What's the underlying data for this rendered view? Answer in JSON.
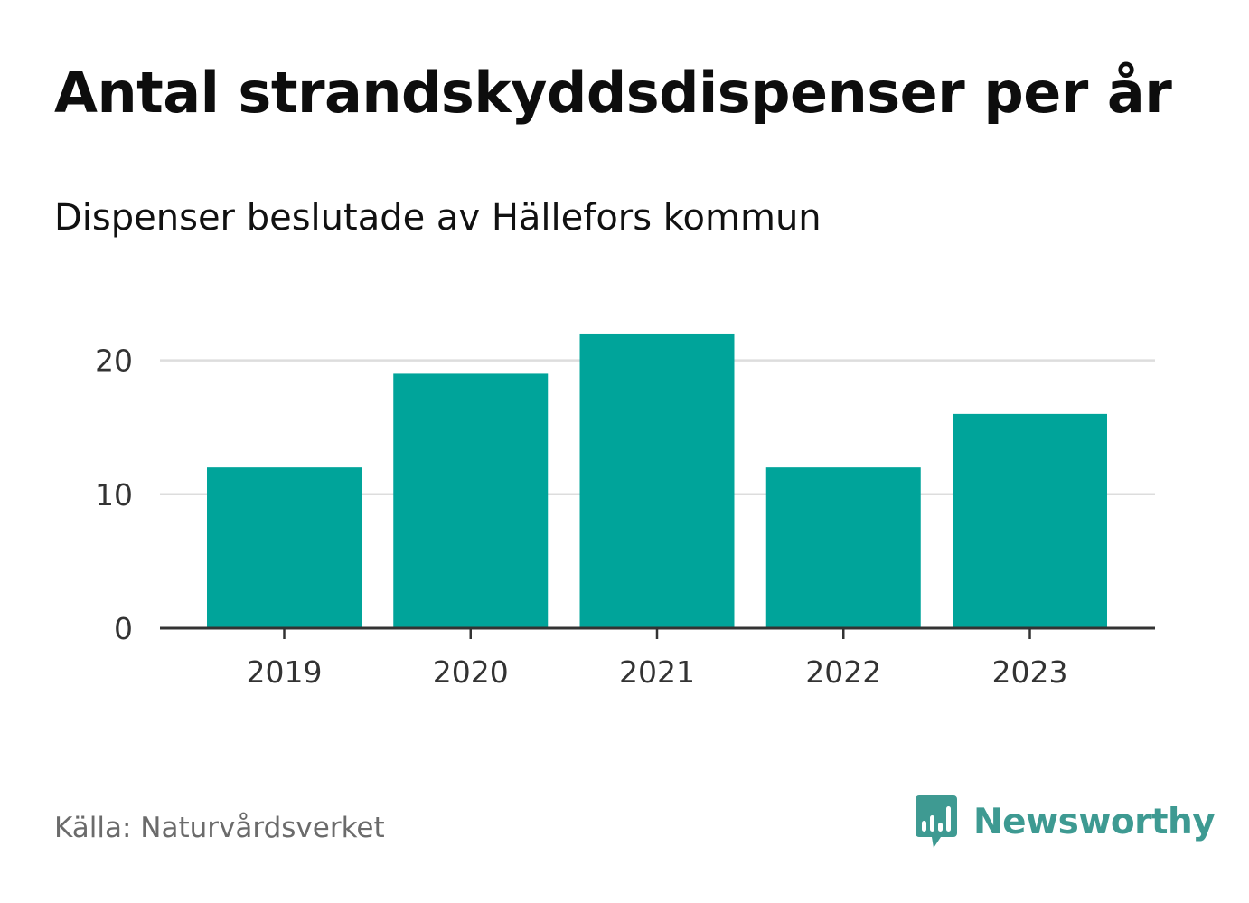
{
  "header": {
    "title": "Antal strandskyddsdispenser per år",
    "subtitle": "Dispenser beslutade av Hällefors kommun"
  },
  "footer": {
    "source": "Källa: Naturvårdsverket",
    "brand": "Newsworthy",
    "brand_icon": "chart-bubble-icon"
  },
  "colors": {
    "bar": "#00a49a",
    "grid": "#dddddd",
    "axis": "#333333",
    "tick_text": "#333333",
    "brand": "#3e9a92"
  },
  "chart_data": {
    "type": "bar",
    "title": "Antal strandskyddsdispenser per år",
    "subtitle": "Dispenser beslutade av Hällefors kommun",
    "categories": [
      "2019",
      "2020",
      "2021",
      "2022",
      "2023"
    ],
    "values": [
      12,
      19,
      22,
      12,
      16
    ],
    "xlabel": "",
    "ylabel": "",
    "ylim": [
      0,
      22
    ],
    "yticks": [
      0,
      10,
      20
    ],
    "grid": true,
    "legend": "none"
  }
}
